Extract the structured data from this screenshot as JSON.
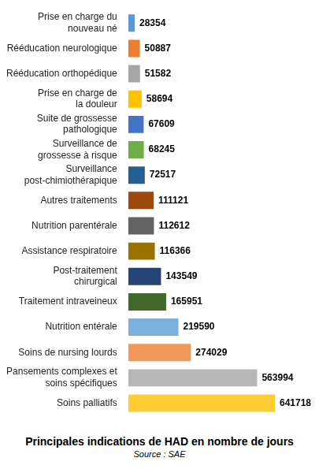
{
  "chart_data": {
    "type": "bar",
    "orientation": "horizontal",
    "title": "Principales indications de HAD en nombre de jours",
    "subtitle": "Source : SAE",
    "categories": [
      "Prise en charge du\nnouveau né",
      "Rééducation neurologique",
      "Rééducation orthopédique",
      "Prise en charge de\nla douleur",
      "Suite de grossesse\npathologique",
      "Surveillance de\ngrossesse à risque",
      "Surveillance\npost-chimiothérapique",
      "Autres traitements",
      "Nutrition parentérale",
      "Assistance respiratoire",
      "Post-traitement\nchirurgical",
      "Traitement intraveineux",
      "Nutrition entérale",
      "Soins de nursing lourds",
      "Pansements complexes et\nsoins spécifiques",
      "Soins palliatifs"
    ],
    "values": [
      28354,
      50887,
      51582,
      58694,
      67609,
      68245,
      72517,
      111121,
      112612,
      116366,
      143549,
      165951,
      219590,
      274029,
      563994,
      641718
    ],
    "colors": [
      "#5b9bd5",
      "#ed7d31",
      "#a5a5a5",
      "#ffc000",
      "#4472c4",
      "#70ad47",
      "#255e91",
      "#9e480e",
      "#636363",
      "#997300",
      "#264478",
      "#43682b",
      "#7cafdd",
      "#f1975a",
      "#b7b7b7",
      "#ffcd33"
    ],
    "data_labels": true,
    "tick_labels": "y",
    "grid": false
  }
}
